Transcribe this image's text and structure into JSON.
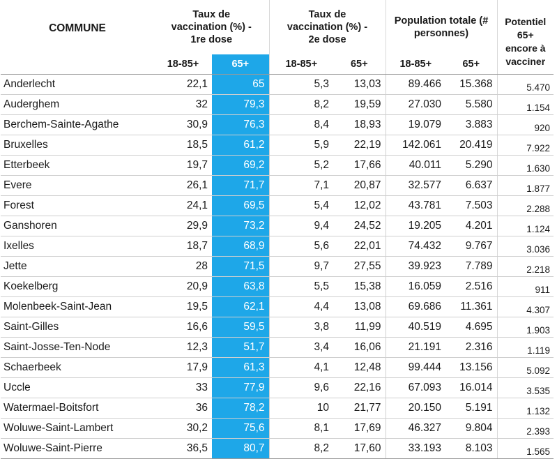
{
  "headers": {
    "commune": "COMMUNE",
    "dose1": "Taux de vaccination (%) - 1re dose",
    "dose2": "Taux de vaccination (%) - 2e dose",
    "population": "Population totale (# personnes)",
    "potentiel": "Potentiel 65+ encore à vacciner",
    "sub_18_85": "18-85+",
    "sub_65": "65+"
  },
  "rows": [
    {
      "commune": "Anderlecht",
      "d1_1885": "22,1",
      "d1_65": "65",
      "d2_1885": "5,3",
      "d2_65": "13,03",
      "pop_1885": "89.466",
      "pop_65": "15.368",
      "pot": "5.470"
    },
    {
      "commune": "Auderghem",
      "d1_1885": "32",
      "d1_65": "79,3",
      "d2_1885": "8,2",
      "d2_65": "19,59",
      "pop_1885": "27.030",
      "pop_65": "5.580",
      "pot": "1.154"
    },
    {
      "commune": "Berchem-Sainte-Agathe",
      "d1_1885": "30,9",
      "d1_65": "76,3",
      "d2_1885": "8,4",
      "d2_65": "18,93",
      "pop_1885": "19.079",
      "pop_65": "3.883",
      "pot": "920"
    },
    {
      "commune": "Bruxelles",
      "d1_1885": "18,5",
      "d1_65": "61,2",
      "d2_1885": "5,9",
      "d2_65": "22,19",
      "pop_1885": "142.061",
      "pop_65": "20.419",
      "pot": "7.922"
    },
    {
      "commune": "Etterbeek",
      "d1_1885": "19,7",
      "d1_65": "69,2",
      "d2_1885": "5,2",
      "d2_65": "17,66",
      "pop_1885": "40.011",
      "pop_65": "5.290",
      "pot": "1.630"
    },
    {
      "commune": "Evere",
      "d1_1885": "26,1",
      "d1_65": "71,7",
      "d2_1885": "7,1",
      "d2_65": "20,87",
      "pop_1885": "32.577",
      "pop_65": "6.637",
      "pot": "1.877"
    },
    {
      "commune": "Forest",
      "d1_1885": "24,1",
      "d1_65": "69,5",
      "d2_1885": "5,4",
      "d2_65": "12,02",
      "pop_1885": "43.781",
      "pop_65": "7.503",
      "pot": "2.288"
    },
    {
      "commune": "Ganshoren",
      "d1_1885": "29,9",
      "d1_65": "73,2",
      "d2_1885": "9,4",
      "d2_65": "24,52",
      "pop_1885": "19.205",
      "pop_65": "4.201",
      "pot": "1.124"
    },
    {
      "commune": "Ixelles",
      "d1_1885": "18,7",
      "d1_65": "68,9",
      "d2_1885": "5,6",
      "d2_65": "22,01",
      "pop_1885": "74.432",
      "pop_65": "9.767",
      "pot": "3.036"
    },
    {
      "commune": "Jette",
      "d1_1885": "28",
      "d1_65": "71,5",
      "d2_1885": "9,7",
      "d2_65": "27,55",
      "pop_1885": "39.923",
      "pop_65": "7.789",
      "pot": "2.218"
    },
    {
      "commune": "Koekelberg",
      "d1_1885": "20,9",
      "d1_65": "63,8",
      "d2_1885": "5,5",
      "d2_65": "15,38",
      "pop_1885": "16.059",
      "pop_65": "2.516",
      "pot": "911"
    },
    {
      "commune": "Molenbeek-Saint-Jean",
      "d1_1885": "19,5",
      "d1_65": "62,1",
      "d2_1885": "4,4",
      "d2_65": "13,08",
      "pop_1885": "69.686",
      "pop_65": "11.361",
      "pot": "4.307"
    },
    {
      "commune": "Saint-Gilles",
      "d1_1885": "16,6",
      "d1_65": "59,5",
      "d2_1885": "3,8",
      "d2_65": "11,99",
      "pop_1885": "40.519",
      "pop_65": "4.695",
      "pot": "1.903"
    },
    {
      "commune": "Saint-Josse-Ten-Node",
      "d1_1885": "12,3",
      "d1_65": "51,7",
      "d2_1885": "3,4",
      "d2_65": "16,06",
      "pop_1885": "21.191",
      "pop_65": "2.316",
      "pot": "1.119"
    },
    {
      "commune": "Schaerbeek",
      "d1_1885": "17,9",
      "d1_65": "61,3",
      "d2_1885": "4,1",
      "d2_65": "12,48",
      "pop_1885": "99.444",
      "pop_65": "13.156",
      "pot": "5.092"
    },
    {
      "commune": "Uccle",
      "d1_1885": "33",
      "d1_65": "77,9",
      "d2_1885": "9,6",
      "d2_65": "22,16",
      "pop_1885": "67.093",
      "pop_65": "16.014",
      "pot": "3.535"
    },
    {
      "commune": "Watermael-Boitsfort",
      "d1_1885": "36",
      "d1_65": "78,2",
      "d2_1885": "10",
      "d2_65": "21,77",
      "pop_1885": "20.150",
      "pop_65": "5.191",
      "pot": "1.132"
    },
    {
      "commune": "Woluwe-Saint-Lambert",
      "d1_1885": "30,2",
      "d1_65": "75,6",
      "d2_1885": "8,1",
      "d2_65": "17,69",
      "pop_1885": "46.327",
      "pop_65": "9.804",
      "pot": "2.393"
    },
    {
      "commune": "Woluwe-Saint-Pierre",
      "d1_1885": "36,5",
      "d1_65": "80,7",
      "d2_1885": "8,2",
      "d2_65": "17,60",
      "pop_1885": "33.193",
      "pop_65": "8.103",
      "pot": "1.565"
    }
  ],
  "colors": {
    "highlight": "#1ea7e8",
    "highlight_text": "#ffffff"
  }
}
